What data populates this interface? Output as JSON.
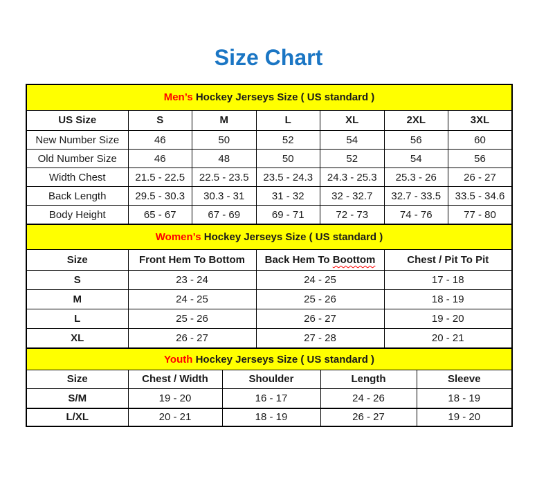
{
  "page_title": {
    "text": "Size Chart",
    "color": "#1b76c4"
  },
  "colors": {
    "title_blue": "#1b76c4",
    "band_background": "#ffff00",
    "highlight_red": "#ff0000",
    "border_black": "#000000",
    "page_background": "#ffffff"
  },
  "chart_data": [
    {
      "type": "table",
      "title": "Men’s Hockey Jerseys Size ( US standard )",
      "title_highlight": "Men’s",
      "title_rest": " Hockey Jerseys Size ( US standard )",
      "columns": [
        "US Size",
        "S",
        "M",
        "L",
        "XL",
        "2XL",
        "3XL"
      ],
      "rows": [
        {
          "label": "New Number Size",
          "values": [
            "46",
            "50",
            "52",
            "54",
            "56",
            "60"
          ]
        },
        {
          "label": "Old Number Size",
          "values": [
            "46",
            "48",
            "50",
            "52",
            "54",
            "56"
          ]
        },
        {
          "label": "Width Chest",
          "values": [
            "21.5 - 22.5",
            "22.5 - 23.5",
            "23.5 - 24.3",
            "24.3 - 25.3",
            "25.3 - 26",
            "26 - 27"
          ]
        },
        {
          "label": "Back Length",
          "values": [
            "29.5 - 30.3",
            "30.3 - 31",
            "31 - 32",
            "32 - 32.7",
            "32.7 - 33.5",
            "33.5 - 34.6"
          ]
        },
        {
          "label": "Body Height",
          "values": [
            "65 - 67",
            "67 - 69",
            "69 - 71",
            "72 - 73",
            "74 - 76",
            "77 - 80"
          ]
        }
      ]
    },
    {
      "type": "table",
      "title": "Women’s Hockey Jerseys Size ( US standard )",
      "title_highlight": "Women’s",
      "title_rest": " Hockey Jerseys Size ( US standard )",
      "columns": [
        "Size",
        "Front Hem To Bottom",
        "Back Hem To Boottom",
        "Chest / Pit To Pit"
      ],
      "misspell": {
        "prefix": "Back Hem To ",
        "word": "Boottom"
      },
      "rows": [
        {
          "label": "S",
          "values": [
            "23 - 24",
            "24 - 25",
            "17 - 18"
          ]
        },
        {
          "label": "M",
          "values": [
            "24 - 25",
            "25 - 26",
            "18 - 19"
          ]
        },
        {
          "label": "L",
          "values": [
            "25 - 26",
            "26 - 27",
            "19 - 20"
          ]
        },
        {
          "label": "XL",
          "values": [
            "26 - 27",
            "27 - 28",
            "20 - 21"
          ]
        }
      ]
    },
    {
      "type": "table",
      "title": "Youth Hockey Jerseys Size ( US standard )",
      "title_highlight": "Youth",
      "title_rest": " Hockey Jerseys Size ( US standard )",
      "columns": [
        "Size",
        "Chest / Width",
        "Shoulder",
        "Length",
        "Sleeve"
      ],
      "rows": [
        {
          "label": "S/M",
          "values": [
            "19 - 20",
            "16 - 17",
            "24 - 26",
            "18 - 19"
          ]
        },
        {
          "label": "L/XL",
          "values": [
            "20 - 21",
            "18 - 19",
            "26 - 27",
            "19 - 20"
          ]
        }
      ]
    }
  ]
}
